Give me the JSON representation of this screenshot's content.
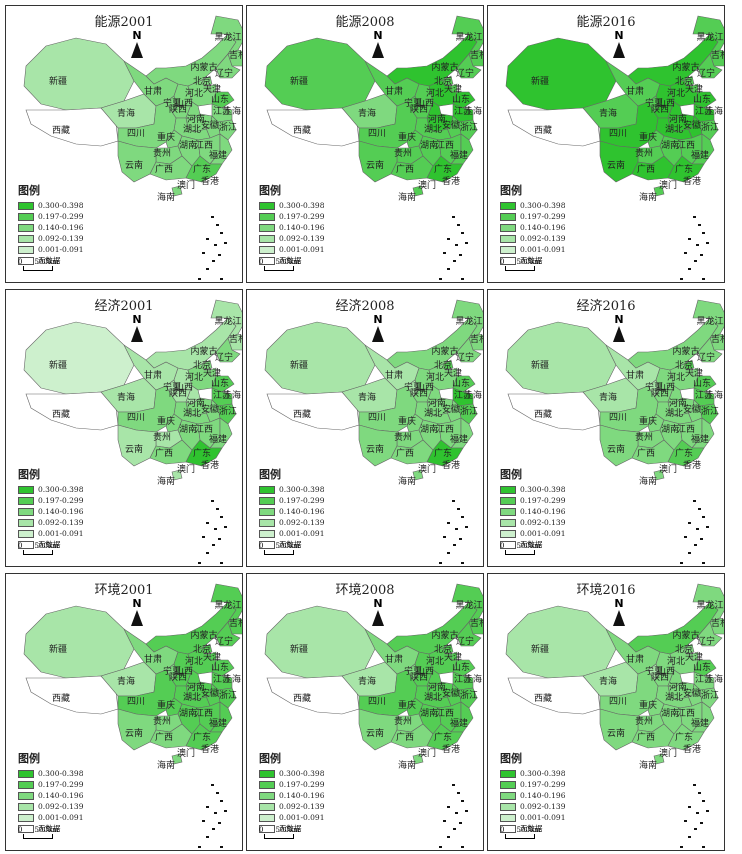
{
  "legend": {
    "title": "图例",
    "items": [
      {
        "label": "0.300-0.398",
        "color": "#2fc32f"
      },
      {
        "label": "0.197-0.299",
        "color": "#54cd54"
      },
      {
        "label": "0.140-0.196",
        "color": "#7fd97f"
      },
      {
        "label": "0.092-0.139",
        "color": "#a8e5a8"
      },
      {
        "label": "0.001-0.091",
        "color": "#cdf0cd"
      },
      {
        "label": "无数据",
        "color": "#ffffff"
      }
    ]
  },
  "north_label": "N",
  "scale": {
    "zero": "0",
    "distance": "500km"
  },
  "region_labels": [
    "新疆",
    "西藏",
    "青海",
    "甘肃",
    "宁夏",
    "陕西",
    "内蒙古",
    "黑龙江",
    "吉林",
    "辽宁",
    "北京",
    "天津",
    "河北",
    "山西",
    "山东",
    "河南",
    "江苏",
    "安徽",
    "湖北",
    "四川",
    "重庆",
    "贵州",
    "云南",
    "湖南",
    "江西",
    "浙江",
    "上海",
    "福建",
    "广西",
    "广东",
    "澳门",
    "香港",
    "海南"
  ],
  "panels": [
    {
      "title": "能源2001",
      "levels": {
        "xj": 4,
        "xz": 0,
        "qh": 4,
        "gs": 3,
        "nx": 3,
        "sx": 3,
        "nmg": 3,
        "hlj": 3,
        "jl": 3,
        "ln": 3,
        "bj": 3,
        "tj": 3,
        "hb": 3,
        "shx": 3,
        "sd": 2,
        "hn": 3,
        "js": 3,
        "ah": 3,
        "hub": 3,
        "sc": 3,
        "cq": 3,
        "gz": 3,
        "yn": 3,
        "hun": 3,
        "jx": 3,
        "zj": 3,
        "fj": 3,
        "gx": 3,
        "gd": 2,
        "hi": 3
      }
    },
    {
      "title": "能源2008",
      "levels": {
        "xj": 2,
        "xz": 0,
        "qh": 3,
        "gs": 2,
        "nx": 2,
        "sx": 2,
        "nmg": 1,
        "hlj": 2,
        "jl": 2,
        "ln": 2,
        "bj": 2,
        "tj": 2,
        "hb": 1,
        "shx": 1,
        "sd": 1,
        "hn": 1,
        "js": 1,
        "ah": 2,
        "hub": 2,
        "sc": 2,
        "cq": 2,
        "gz": 2,
        "yn": 2,
        "hun": 2,
        "jx": 2,
        "zj": 2,
        "fj": 2,
        "gx": 2,
        "gd": 1,
        "hi": 2
      }
    },
    {
      "title": "能源2016",
      "levels": {
        "xj": 1,
        "xz": 0,
        "qh": 2,
        "gs": 2,
        "nx": 2,
        "sx": 1,
        "nmg": 1,
        "hlj": 2,
        "jl": 2,
        "ln": 2,
        "bj": 2,
        "tj": 2,
        "hb": 1,
        "shx": 1,
        "sd": 1,
        "hn": 1,
        "js": 1,
        "ah": 1,
        "hub": 1,
        "sc": 1,
        "cq": 2,
        "gz": 2,
        "yn": 1,
        "hun": 2,
        "jx": 2,
        "zj": 2,
        "fj": 2,
        "gx": 1,
        "gd": 1,
        "hi": 2
      }
    },
    {
      "title": "经济2001",
      "levels": {
        "xj": 5,
        "xz": 0,
        "qh": 4,
        "gs": 4,
        "nx": 4,
        "sx": 4,
        "nmg": 4,
        "hlj": 4,
        "jl": 4,
        "ln": 3,
        "bj": 3,
        "tj": 3,
        "hb": 3,
        "shx": 4,
        "sd": 2,
        "hn": 3,
        "js": 2,
        "ah": 3,
        "hub": 3,
        "sc": 3,
        "cq": 3,
        "gz": 4,
        "yn": 4,
        "hun": 3,
        "jx": 3,
        "zj": 2,
        "fj": 3,
        "gx": 3,
        "gd": 1,
        "hi": 4
      }
    },
    {
      "title": "经济2008",
      "levels": {
        "xj": 4,
        "xz": 0,
        "qh": 4,
        "gs": 4,
        "nx": 4,
        "sx": 3,
        "nmg": 3,
        "hlj": 3,
        "jl": 3,
        "ln": 3,
        "bj": 2,
        "tj": 3,
        "hb": 3,
        "shx": 3,
        "sd": 2,
        "hn": 3,
        "js": 1,
        "ah": 3,
        "hub": 3,
        "sc": 3,
        "cq": 3,
        "gz": 3,
        "yn": 3,
        "hun": 3,
        "jx": 3,
        "zj": 2,
        "fj": 3,
        "gx": 3,
        "gd": 1,
        "hi": 3
      }
    },
    {
      "title": "经济2016",
      "levels": {
        "xj": 4,
        "xz": 0,
        "qh": 4,
        "gs": 4,
        "nx": 4,
        "sx": 3,
        "nmg": 3,
        "hlj": 3,
        "jl": 3,
        "ln": 3,
        "bj": 2,
        "tj": 3,
        "hb": 3,
        "shx": 3,
        "sd": 2,
        "hn": 3,
        "js": 2,
        "ah": 3,
        "hub": 3,
        "sc": 3,
        "cq": 3,
        "gz": 3,
        "yn": 3,
        "hun": 3,
        "jx": 3,
        "zj": 2,
        "fj": 3,
        "gx": 3,
        "gd": 2,
        "hi": 3
      }
    },
    {
      "title": "环境2001",
      "levels": {
        "xj": 4,
        "xz": 0,
        "qh": 4,
        "gs": 3,
        "nx": 3,
        "sx": 2,
        "nmg": 2,
        "hlj": 2,
        "jl": 2,
        "ln": 2,
        "bj": 2,
        "tj": 2,
        "hb": 2,
        "shx": 2,
        "sd": 2,
        "hn": 2,
        "js": 2,
        "ah": 2,
        "hub": 2,
        "sc": 2,
        "cq": 2,
        "gz": 3,
        "yn": 3,
        "hun": 2,
        "jx": 2,
        "zj": 2,
        "fj": 2,
        "gx": 3,
        "gd": 2,
        "hi": 3
      }
    },
    {
      "title": "环境2008",
      "levels": {
        "xj": 4,
        "xz": 0,
        "qh": 4,
        "gs": 3,
        "nx": 3,
        "sx": 2,
        "nmg": 2,
        "hlj": 2,
        "jl": 2,
        "ln": 2,
        "bj": 2,
        "tj": 2,
        "hb": 2,
        "shx": 2,
        "sd": 2,
        "hn": 2,
        "js": 2,
        "ah": 2,
        "hub": 2,
        "sc": 2,
        "cq": 2,
        "gz": 3,
        "yn": 3,
        "hun": 2,
        "jx": 2,
        "zj": 2,
        "fj": 2,
        "gx": 3,
        "gd": 2,
        "hi": 3
      }
    },
    {
      "title": "环境2016",
      "levels": {
        "xj": 4,
        "xz": 0,
        "qh": 4,
        "gs": 3,
        "nx": 4,
        "sx": 3,
        "nmg": 2,
        "hlj": 3,
        "jl": 3,
        "ln": 3,
        "bj": 3,
        "tj": 3,
        "hb": 3,
        "shx": 3,
        "sd": 2,
        "hn": 3,
        "js": 3,
        "ah": 3,
        "hub": 3,
        "sc": 3,
        "cq": 3,
        "gz": 3,
        "yn": 3,
        "hun": 3,
        "jx": 3,
        "zj": 3,
        "fj": 3,
        "gx": 3,
        "gd": 3,
        "hi": 3
      }
    }
  ]
}
